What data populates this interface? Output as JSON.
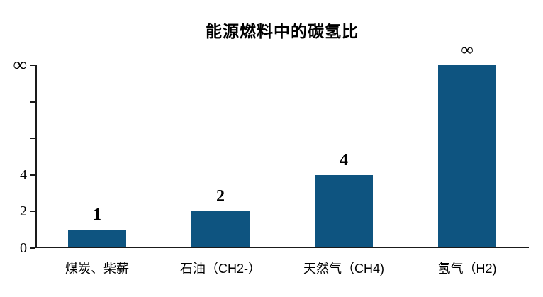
{
  "chart_data": {
    "type": "bar",
    "title": "能源燃料中的碳氢比",
    "categories": [
      "煤炭、柴薪",
      "石油（CH2-）",
      "天然气（CH4)",
      "氢气（H2)"
    ],
    "values": [
      1,
      2,
      4,
      "∞"
    ],
    "data_labels": [
      "1",
      "2",
      "4",
      "∞"
    ],
    "bar_plot_heights": [
      1,
      2,
      4,
      10
    ],
    "xlabel": "",
    "ylabel": "",
    "grid": false,
    "legend": false,
    "y_axis": {
      "max": 10,
      "ticks": [
        {
          "value": 0,
          "label": "0"
        },
        {
          "value": 2,
          "label": "2"
        },
        {
          "value": 4,
          "label": "4"
        },
        {
          "value": 6,
          "label": ""
        },
        {
          "value": 8,
          "label": ""
        },
        {
          "value": 10,
          "label": "∞"
        }
      ]
    },
    "colors": {
      "bar": "#0E5480",
      "axis": "#1a1a1a",
      "text": "#000000",
      "background": "#ffffff"
    }
  }
}
